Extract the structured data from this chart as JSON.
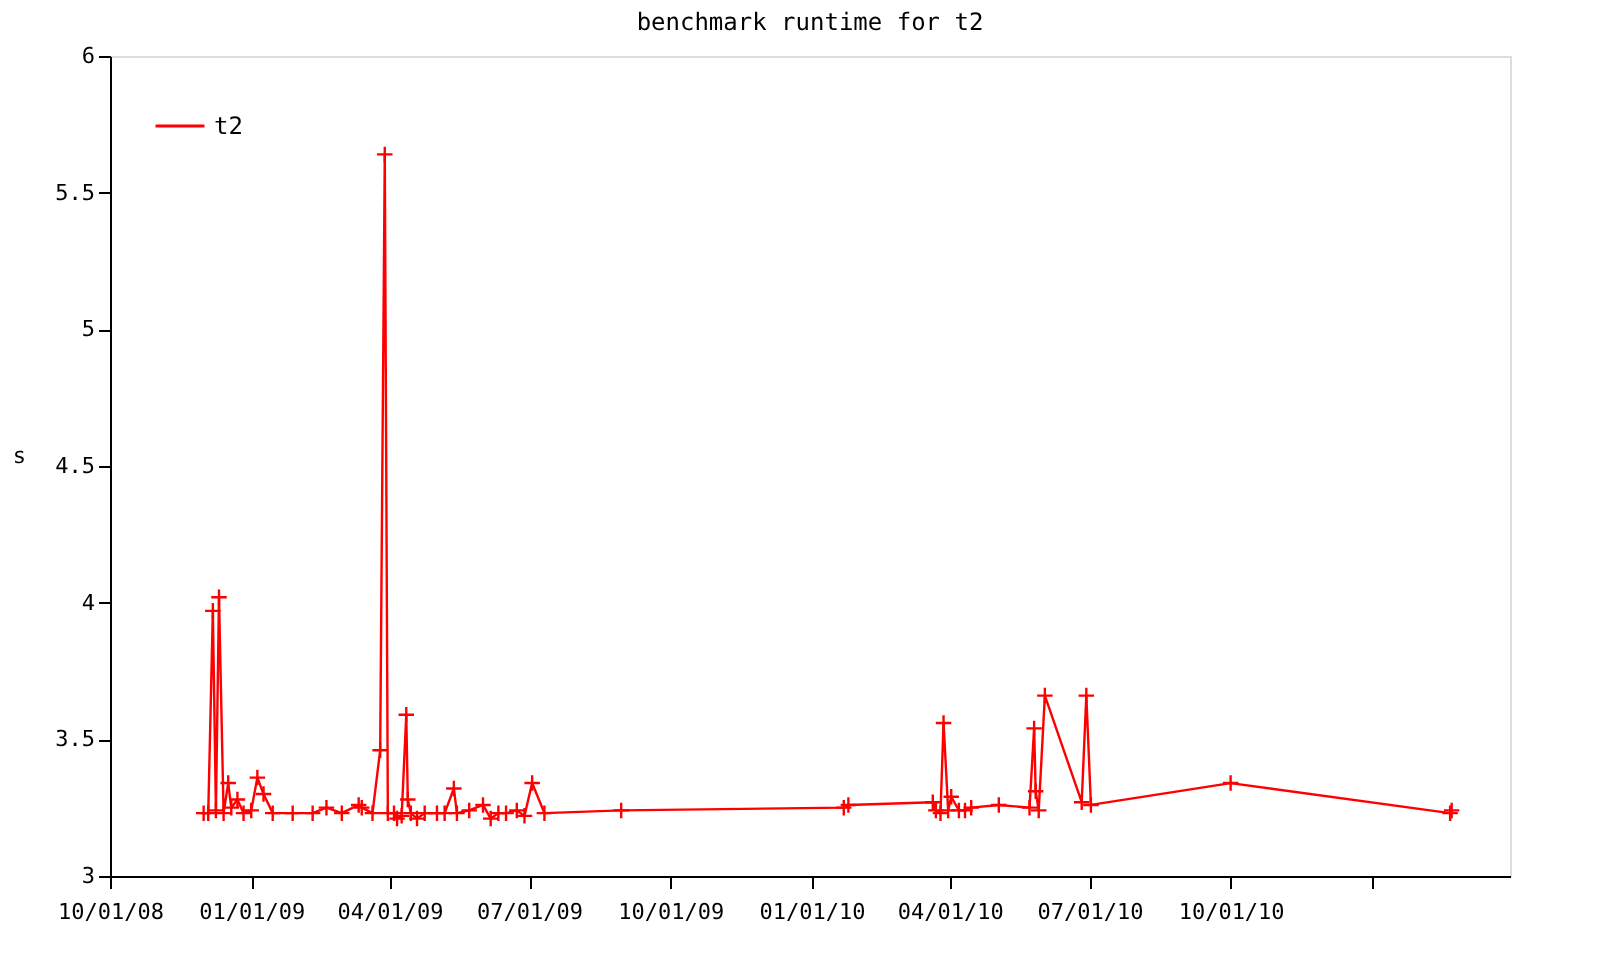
{
  "chart_data": {
    "type": "line",
    "title": "benchmark runtime for t2",
    "ylabel": "s",
    "x": [
      "2008-12-01",
      "2008-12-04",
      "2008-12-07",
      "2008-12-09",
      "2008-12-11",
      "2008-12-14",
      "2008-12-17",
      "2008-12-19",
      "2008-12-23",
      "2008-12-27",
      "2009-01-01",
      "2009-01-05",
      "2009-01-09",
      "2009-01-15",
      "2009-01-28",
      "2009-02-10",
      "2009-02-19",
      "2009-03-01",
      "2009-03-12",
      "2009-03-14",
      "2009-03-21",
      "2009-03-26",
      "2009-03-29",
      "2009-03-31",
      "2009-04-04",
      "2009-04-06",
      "2009-04-09",
      "2009-04-12",
      "2009-04-13",
      "2009-04-15",
      "2009-04-19",
      "2009-04-24",
      "2009-05-02",
      "2009-05-07",
      "2009-05-13",
      "2009-05-15",
      "2009-05-23",
      "2009-06-01",
      "2009-06-06",
      "2009-06-11",
      "2009-06-16",
      "2009-06-23",
      "2009-06-28",
      "2009-07-03",
      "2009-07-11",
      "2009-08-30",
      "2010-01-22",
      "2010-01-25",
      "2010-03-21",
      "2010-03-23",
      "2010-03-26",
      "2010-03-28",
      "2010-03-31",
      "2010-04-02",
      "2010-04-07",
      "2010-04-11",
      "2010-04-15",
      "2010-05-03",
      "2010-05-23",
      "2010-05-26",
      "2010-05-27",
      "2010-05-29",
      "2010-06-02",
      "2010-06-26",
      "2010-06-29",
      "2010-07-02",
      "2010-10-01",
      "2011-02-21",
      "2011-02-22"
    ],
    "series": [
      {
        "name": "t2",
        "color": "#ff0000",
        "values": [
          3.23,
          3.23,
          3.97,
          3.24,
          4.02,
          3.23,
          3.34,
          3.25,
          3.28,
          3.23,
          3.24,
          3.36,
          3.3,
          3.23,
          3.23,
          3.23,
          3.25,
          3.23,
          3.26,
          3.25,
          3.23,
          3.46,
          5.64,
          3.23,
          3.23,
          3.21,
          3.22,
          3.59,
          3.28,
          3.23,
          3.21,
          3.23,
          3.23,
          3.23,
          3.32,
          3.23,
          3.24,
          3.26,
          3.21,
          3.23,
          3.23,
          3.24,
          3.22,
          3.34,
          3.23,
          3.24,
          3.25,
          3.26,
          3.27,
          3.24,
          3.23,
          3.56,
          3.24,
          3.29,
          3.24,
          3.24,
          3.25,
          3.26,
          3.25,
          3.54,
          3.31,
          3.24,
          3.66,
          3.27,
          3.66,
          3.26,
          3.34,
          3.23,
          3.24
        ]
      }
    ],
    "xlim": [
      "2008-10-01",
      "2011-04-01"
    ],
    "xticks": [
      {
        "value": "2008-10-01",
        "label": "10/01/08"
      },
      {
        "value": "2009-01-01",
        "label": "01/01/09"
      },
      {
        "value": "2009-04-01",
        "label": "04/01/09"
      },
      {
        "value": "2009-07-01",
        "label": "07/01/09"
      },
      {
        "value": "2009-10-01",
        "label": "10/01/09"
      },
      {
        "value": "2010-01-01",
        "label": "01/01/10"
      },
      {
        "value": "2010-04-01",
        "label": "04/01/10"
      },
      {
        "value": "2010-07-01",
        "label": "07/01/10"
      },
      {
        "value": "2010-10-01",
        "label": "10/01/10"
      },
      {
        "value": "2011-01-01",
        "label": null
      }
    ],
    "ylim": [
      3,
      6
    ],
    "yticks": [
      3,
      3.5,
      4,
      4.5,
      5,
      5.5,
      6
    ],
    "grid": false,
    "legend": "top left",
    "marker": "cross",
    "line_style": "solid"
  }
}
